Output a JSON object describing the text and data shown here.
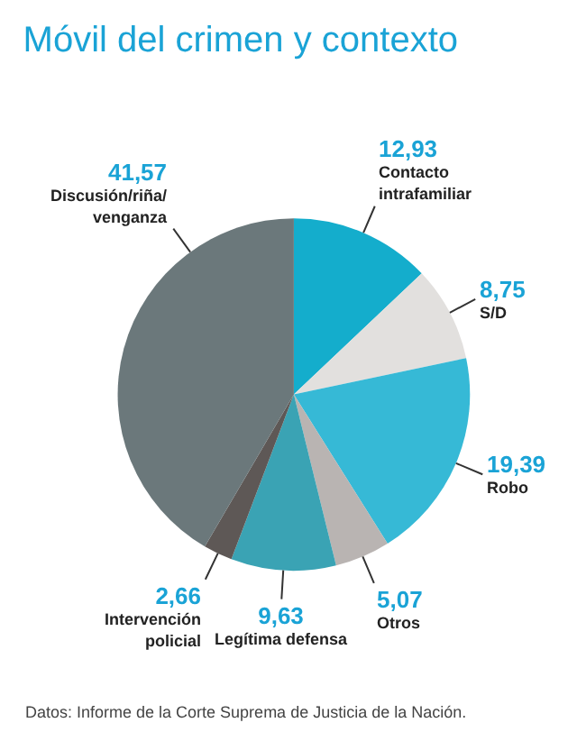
{
  "chart_data": {
    "type": "pie",
    "title": "Móvil del crimen y contexto",
    "categories": [
      "Contacto intrafamiliar",
      "S/D",
      "Robo",
      "Otros",
      "Legítima defensa",
      "Intervención policial",
      "Discusión/riña/venganza"
    ],
    "values": [
      12.93,
      8.75,
      19.39,
      5.07,
      9.63,
      2.66,
      41.57
    ],
    "value_labels": [
      "12,93",
      "8,75",
      "19,39",
      "5,07",
      "9,63",
      "2,66",
      "41,57"
    ],
    "colors": [
      "#14adcc",
      "#e2e0de",
      "#36b9d6",
      "#b9b4b2",
      "#3aa3b4",
      "#5e5856",
      "#6b787b"
    ],
    "annotations": [
      "Datos: Informe de la Corte Suprema de Justicia de la Nación."
    ],
    "legend": false
  }
}
